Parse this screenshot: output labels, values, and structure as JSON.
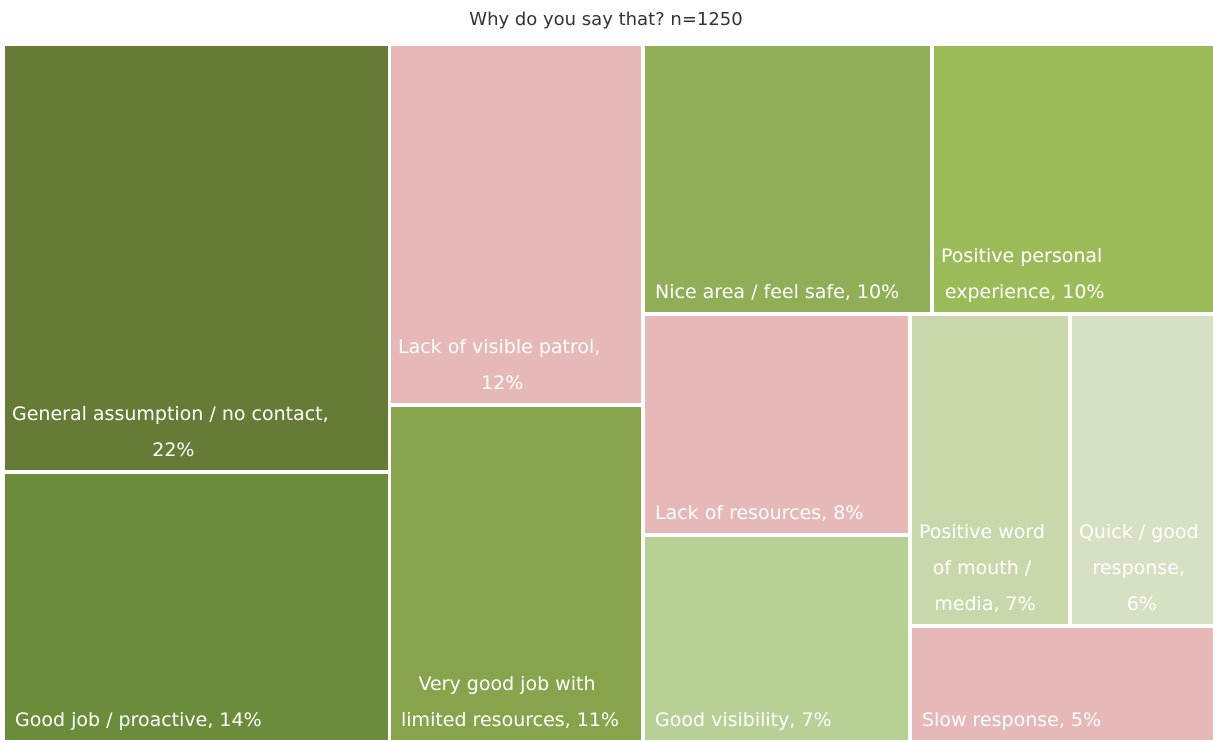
{
  "chart_data": {
    "type": "treemap",
    "title": "Why do you say that? n=1250",
    "values": [
      22,
      14,
      12,
      11,
      10,
      10,
      8,
      7,
      7,
      6,
      5
    ],
    "value_labels": [
      "General assumption / no contact, 22%",
      "Good job / proactive, 14%",
      "Lack of visible patrol, 12%",
      "Very good job with limited resources, 11%",
      "Nice area / feel safe, 10%",
      "Positive personal experience, 10%",
      "Lack of resources, 8%",
      "Good visibility, 7%",
      "Positive word of mouth / media, 7%",
      "Quick / good response, 6%",
      "Slow response, 5%"
    ],
    "colors": [
      "#667b36",
      "#6b8c3a",
      "#e6b8b8",
      "#87a44d",
      "#8fae55",
      "#9bbb59",
      "#e6b8b8",
      "#b8cf96",
      "#c8d8ab",
      "#d5e1c2",
      "#e6b8b8"
    ]
  }
}
